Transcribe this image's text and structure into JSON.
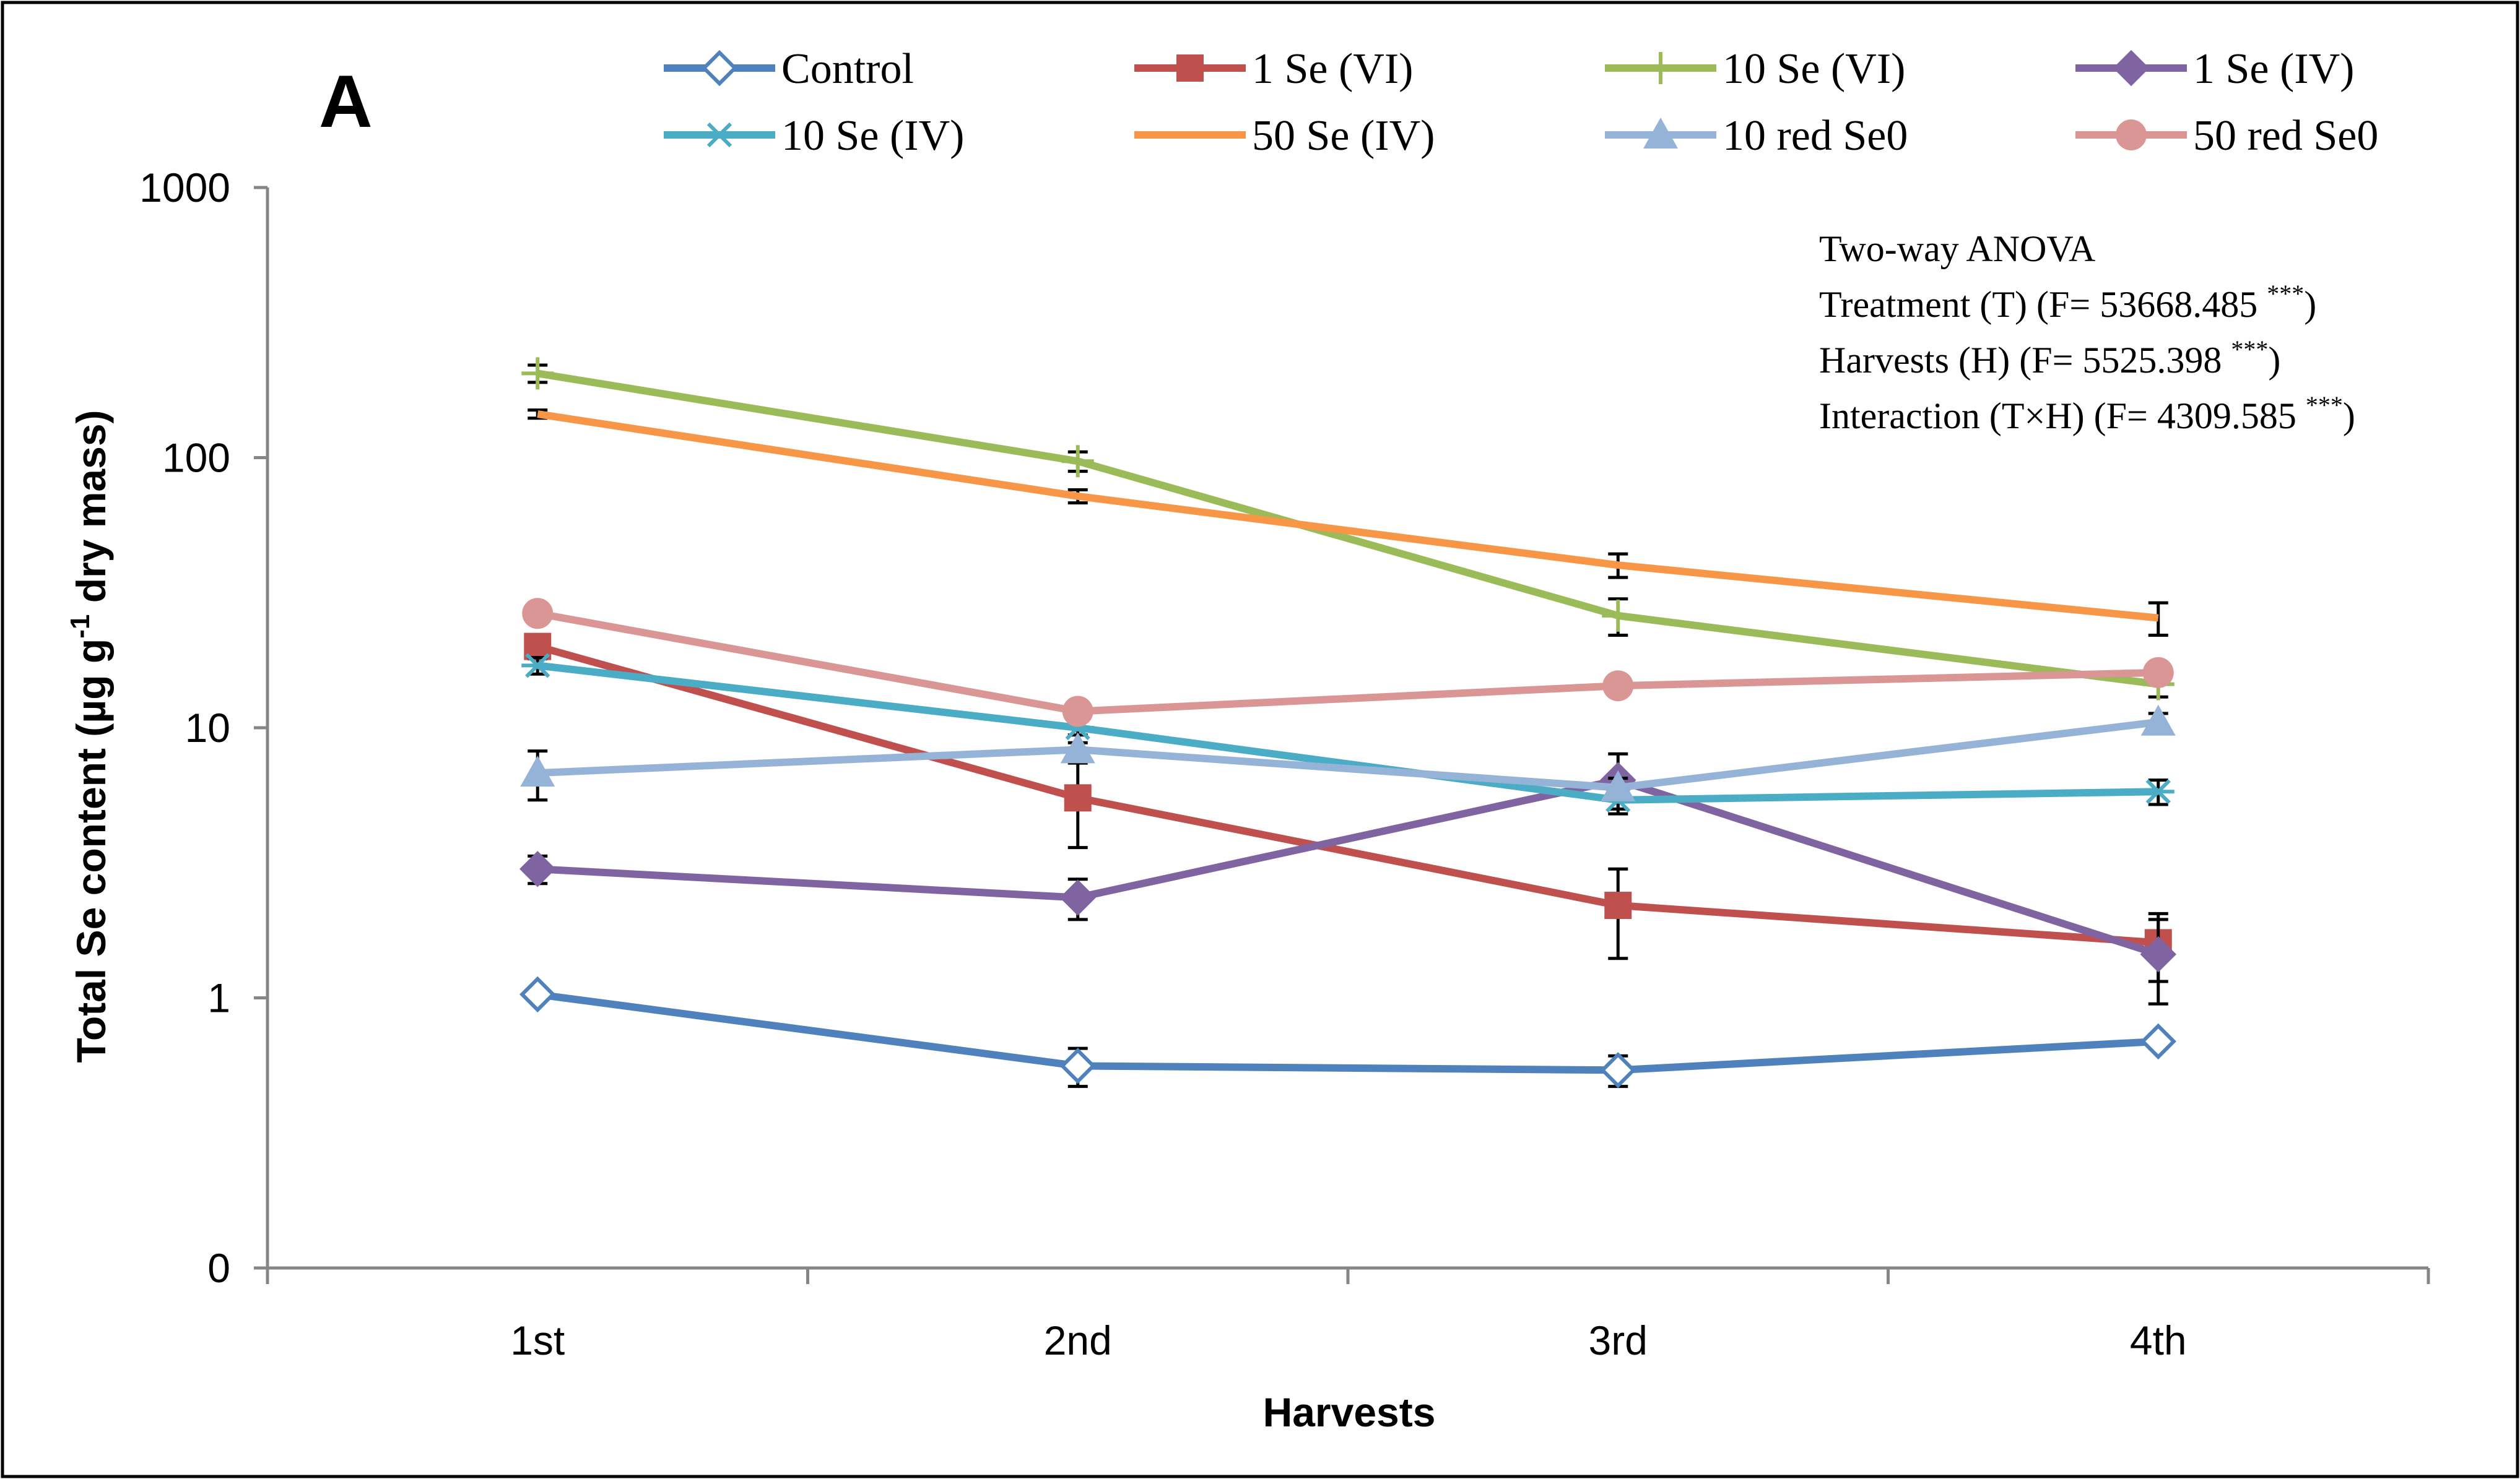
{
  "chart_data": {
    "type": "line",
    "panel_label": "A",
    "xlabel": "Harvests",
    "ylabel": "Total Se content (µg g",
    "ylabel_sup": "-1",
    "ylabel_tail": " dry mass)",
    "y_scale": "log",
    "ylim": [
      0.1,
      1000
    ],
    "yticks": [
      {
        "value": 1000,
        "label": "1000"
      },
      {
        "value": 100,
        "label": "100"
      },
      {
        "value": 10,
        "label": "10"
      },
      {
        "value": 1,
        "label": "1"
      },
      {
        "value": 0.1,
        "label": "0"
      }
    ],
    "categories": [
      "1st",
      "2nd",
      "3rd",
      "4th"
    ],
    "series": [
      {
        "name": "Control",
        "color": "#4F81BD",
        "marker": "diamond-open",
        "values": [
          1.03,
          0.56,
          0.54,
          0.69
        ],
        "errors": [
          0.04,
          0.09,
          0.07,
          0.04
        ]
      },
      {
        "name": "1 Se (VI)",
        "color": "#C0504D",
        "marker": "square",
        "values": [
          20,
          5.5,
          2.2,
          1.6
        ],
        "errors": [
          2,
          1.9,
          0.8,
          0.45
        ]
      },
      {
        "name": "10 Se (VI)",
        "color": "#9BBB59",
        "marker": "plus",
        "values": [
          205,
          97,
          26,
          14.5
        ],
        "errors": [
          15,
          8,
          4,
          1.5
        ]
      },
      {
        "name": "1 Se (IV)",
        "color": "#8064A2",
        "marker": "diamond",
        "values": [
          3.0,
          2.35,
          6.4,
          1.45
        ],
        "errors": [
          0.35,
          0.4,
          1.6,
          0.5
        ]
      },
      {
        "name": "10 Se (IV)",
        "color": "#4BACC6",
        "marker": "star",
        "values": [
          17,
          10,
          5.4,
          5.8
        ],
        "errors": [
          1.2,
          0.6,
          0.4,
          0.6
        ]
      },
      {
        "name": "50 Se (IV)",
        "color": "#F79646",
        "marker": "none",
        "values": [
          145,
          72,
          40,
          25.5
        ],
        "errors": [
          5,
          4,
          4,
          3.5
        ]
      },
      {
        "name": "10 red Se0",
        "color": "#95B3D7",
        "marker": "triangle",
        "values": [
          6.8,
          8.3,
          6.0,
          10.5
        ],
        "errors": [
          1.4,
          0.5,
          0.5,
          0.8
        ]
      },
      {
        "name": "50 red Se0",
        "color": "#D99694",
        "marker": "circle",
        "values": [
          26.5,
          11.5,
          14.3,
          16
        ],
        "errors": [
          1,
          0.5,
          0.5,
          0.5
        ]
      }
    ],
    "legend_position": "top",
    "grid": false,
    "annotation": {
      "title": "Two-way ANOVA",
      "lines": [
        {
          "text": "Treatment (T)  (F= 53668.485 ",
          "sup": "***",
          "tail": ")"
        },
        {
          "text": "Harvests (H) (F= 5525.398 ",
          "sup": "***",
          "tail": ")"
        },
        {
          "text": "Interaction (T×H) (F= 4309.585 ",
          "sup": "***",
          "tail": ")"
        }
      ]
    }
  }
}
